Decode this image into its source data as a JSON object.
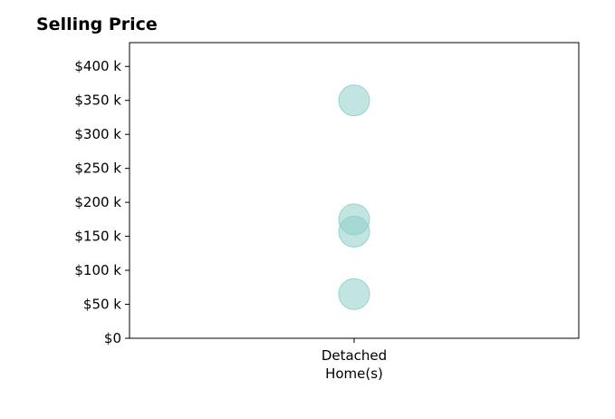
{
  "chart_data": {
    "type": "scatter",
    "title": "Selling Price",
    "xlabel": "",
    "ylabel": "",
    "categories": [
      [
        "Detached",
        "Home(s)"
      ]
    ],
    "series": [
      {
        "category_index": 0,
        "values": [
          350000,
          175000,
          157000,
          65000
        ]
      }
    ],
    "ylim": [
      0,
      435000
    ],
    "yticks": [
      {
        "value": 0,
        "label": "$0"
      },
      {
        "value": 50000,
        "label": "$50 k"
      },
      {
        "value": 100000,
        "label": "$100 k"
      },
      {
        "value": 150000,
        "label": "$150 k"
      },
      {
        "value": 200000,
        "label": "$200 k"
      },
      {
        "value": 250000,
        "label": "$250 k"
      },
      {
        "value": 300000,
        "label": "$300 k"
      },
      {
        "value": 350000,
        "label": "$350 k"
      },
      {
        "value": 400000,
        "label": "$400 k"
      }
    ],
    "grid": false,
    "legend": "none",
    "marker_color": "#8fcfc9"
  }
}
